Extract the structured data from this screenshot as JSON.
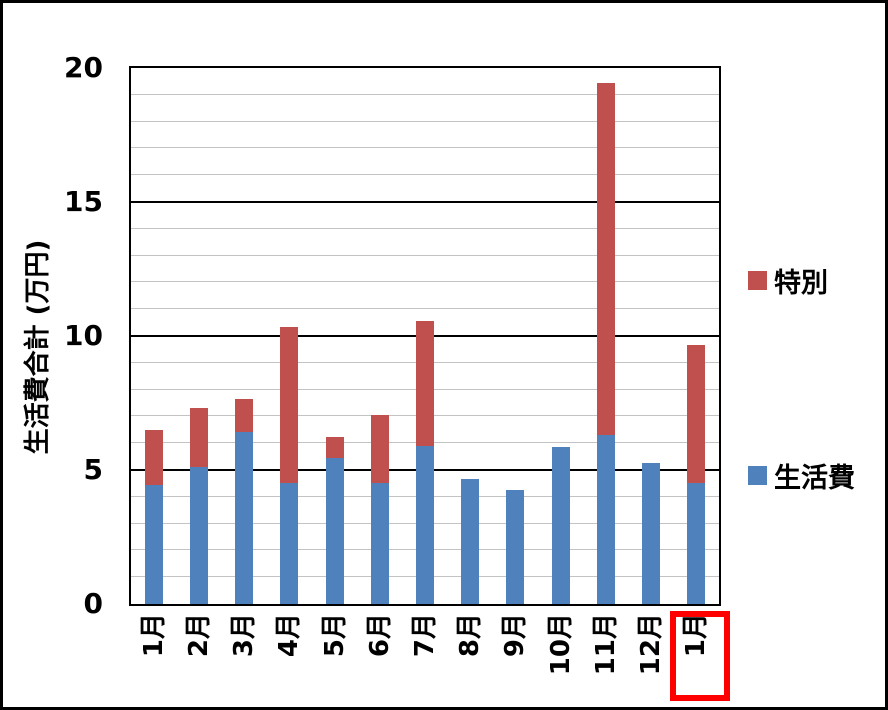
{
  "figure": {
    "background": "#FFFFFF",
    "border_color": "#000000"
  },
  "chart_data": {
    "type": "bar",
    "stacked": true,
    "title": "",
    "xlabel": "",
    "ylabel": "生活費合計 (万円)",
    "ylim": [
      0,
      20
    ],
    "yticks": [
      0,
      5,
      10,
      15,
      20
    ],
    "minor_gridline_unit": 1,
    "grid": "on",
    "categories": [
      "1月",
      "2月",
      "3月",
      "4月",
      "5月",
      "6月",
      "7月",
      "8月",
      "9月",
      "10月",
      "11月",
      "12月",
      "1月"
    ],
    "series": [
      {
        "name": "生活費",
        "color": "#4F81BD",
        "values": [
          4.45,
          5.1,
          6.4,
          4.5,
          5.45,
          4.5,
          5.9,
          4.65,
          4.25,
          5.85,
          6.3,
          5.25,
          4.5
        ]
      },
      {
        "name": "特別",
        "color": "#C0504D",
        "values": [
          2.05,
          2.2,
          1.25,
          5.85,
          0.8,
          2.55,
          4.65,
          0,
          0,
          0,
          13.15,
          0,
          5.15
        ]
      }
    ],
    "totals": [
      6.5,
      7.3,
      7.65,
      10.35,
      6.25,
      7.05,
      10.55,
      4.65,
      4.25,
      5.85,
      19.45,
      5.25,
      9.65
    ],
    "legend": {
      "position": "right",
      "entries": [
        {
          "label": "特別",
          "color": "#C0504D"
        },
        {
          "label": "生活費",
          "color": "#4F81BD"
        }
      ]
    },
    "highlight": {
      "category_index": 12,
      "label": "1月",
      "box_color": "#FF0000"
    },
    "colors": {
      "axis": "#000000",
      "major_gridline": "#000000",
      "minor_gridline": "#C3C3C3",
      "plot_background": "#FFFFFF"
    }
  }
}
